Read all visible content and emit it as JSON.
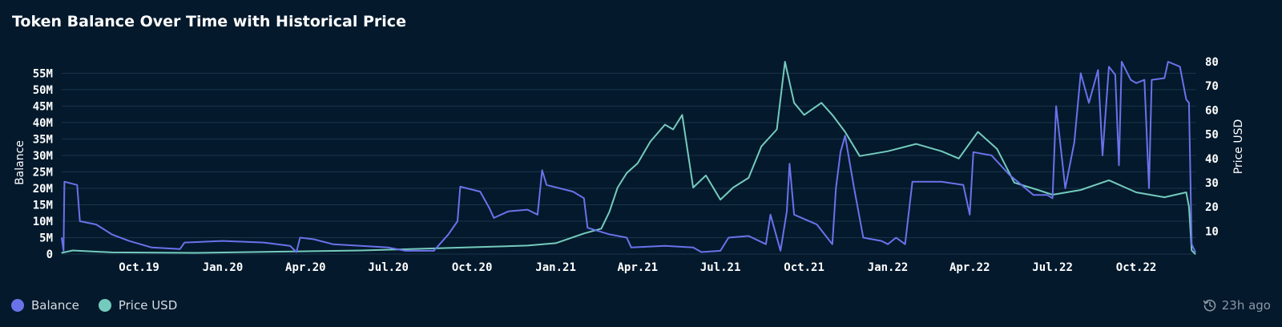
{
  "title": "Token Balance Over Time with Historical Price",
  "legend": {
    "balance_label": "Balance",
    "price_label": "Price USD"
  },
  "updated": "23h ago",
  "colors": {
    "background": "#04192c",
    "balance": "#6a72ea",
    "price": "#74cbbd",
    "grid": "#1b3449",
    "text": "#ffffff"
  },
  "chart_data": {
    "type": "line",
    "x_type": "date",
    "xlim": [
      "2019-07-08",
      "2022-12-06"
    ],
    "x_ticks": [
      "Oct.19",
      "Jan.20",
      "Apr.20",
      "Jul.20",
      "Oct.20",
      "Jan.21",
      "Apr.21",
      "Jul.21",
      "Oct.21",
      "Jan.22",
      "Apr.22",
      "Jul.22",
      "Oct.22"
    ],
    "x_tick_dates": [
      "2019-10-01",
      "2020-01-01",
      "2020-04-01",
      "2020-07-01",
      "2020-10-01",
      "2021-01-01",
      "2021-04-01",
      "2021-07-01",
      "2021-10-01",
      "2022-01-01",
      "2022-04-01",
      "2022-07-01",
      "2022-10-01"
    ],
    "ylabel": "Balance",
    "y_ticks": [
      "0",
      "5M",
      "10M",
      "15M",
      "20M",
      "25M",
      "30M",
      "35M",
      "40M",
      "45M",
      "50M",
      "55M"
    ],
    "ylim": [
      0,
      58500000
    ],
    "y2label": "Price USD",
    "y2_ticks": [
      "10",
      "20",
      "30",
      "40",
      "50",
      "60",
      "70",
      "80"
    ],
    "y2lim": [
      0.5,
      80
    ],
    "grid": true,
    "legend_position": "bottom-left",
    "series": [
      {
        "name": "Balance",
        "axis": "left",
        "points": [
          [
            "2019-07-08",
            5000000
          ],
          [
            "2019-07-10",
            1000000
          ],
          [
            "2019-07-11",
            22000000
          ],
          [
            "2019-07-25",
            21000000
          ],
          [
            "2019-07-28",
            10000000
          ],
          [
            "2019-08-15",
            9000000
          ],
          [
            "2019-09-01",
            6000000
          ],
          [
            "2019-09-20",
            4000000
          ],
          [
            "2019-10-15",
            2000000
          ],
          [
            "2019-11-15",
            1500000
          ],
          [
            "2019-11-20",
            3500000
          ],
          [
            "2020-01-01",
            4000000
          ],
          [
            "2020-02-15",
            3500000
          ],
          [
            "2020-03-15",
            2500000
          ],
          [
            "2020-03-22",
            600000
          ],
          [
            "2020-03-26",
            5000000
          ],
          [
            "2020-04-10",
            4500000
          ],
          [
            "2020-05-01",
            3000000
          ],
          [
            "2020-06-01",
            2500000
          ],
          [
            "2020-07-01",
            2000000
          ],
          [
            "2020-07-20",
            1000000
          ],
          [
            "2020-08-20",
            1000000
          ],
          [
            "2020-09-05",
            6000000
          ],
          [
            "2020-09-15",
            10000000
          ],
          [
            "2020-09-18",
            20500000
          ],
          [
            "2020-10-10",
            19000000
          ],
          [
            "2020-10-20",
            14000000
          ],
          [
            "2020-10-25",
            11000000
          ],
          [
            "2020-11-10",
            13000000
          ],
          [
            "2020-12-01",
            13500000
          ],
          [
            "2020-12-12",
            12000000
          ],
          [
            "2020-12-17",
            25500000
          ],
          [
            "2020-12-22",
            21000000
          ],
          [
            "2021-01-20",
            19000000
          ],
          [
            "2021-02-01",
            17000000
          ],
          [
            "2021-02-05",
            8000000
          ],
          [
            "2021-03-01",
            6000000
          ],
          [
            "2021-03-20",
            5000000
          ],
          [
            "2021-03-25",
            2000000
          ],
          [
            "2021-05-01",
            2500000
          ],
          [
            "2021-06-01",
            2000000
          ],
          [
            "2021-06-10",
            600000
          ],
          [
            "2021-07-01",
            1000000
          ],
          [
            "2021-07-10",
            5000000
          ],
          [
            "2021-08-01",
            5500000
          ],
          [
            "2021-08-20",
            3000000
          ],
          [
            "2021-08-25",
            12000000
          ],
          [
            "2021-09-05",
            1000000
          ],
          [
            "2021-09-12",
            13000000
          ],
          [
            "2021-09-15",
            27500000
          ],
          [
            "2021-09-20",
            12000000
          ],
          [
            "2021-10-15",
            9000000
          ],
          [
            "2021-11-01",
            3000000
          ],
          [
            "2021-11-05",
            20000000
          ],
          [
            "2021-11-10",
            31000000
          ],
          [
            "2021-11-15",
            36000000
          ],
          [
            "2021-11-25",
            20000000
          ],
          [
            "2021-12-05",
            5000000
          ],
          [
            "2021-12-25",
            4000000
          ],
          [
            "2022-01-01",
            3000000
          ],
          [
            "2022-01-10",
            5000000
          ],
          [
            "2022-01-20",
            3000000
          ],
          [
            "2022-01-28",
            22000000
          ],
          [
            "2022-03-01",
            22000000
          ],
          [
            "2022-03-25",
            21000000
          ],
          [
            "2022-04-01",
            12000000
          ],
          [
            "2022-04-05",
            31000000
          ],
          [
            "2022-04-25",
            30000000
          ],
          [
            "2022-05-15",
            24000000
          ],
          [
            "2022-06-10",
            18000000
          ],
          [
            "2022-06-25",
            18000000
          ],
          [
            "2022-07-01",
            17000000
          ],
          [
            "2022-07-05",
            45000000
          ],
          [
            "2022-07-15",
            20000000
          ],
          [
            "2022-07-25",
            34000000
          ],
          [
            "2022-08-01",
            55000000
          ],
          [
            "2022-08-10",
            46000000
          ],
          [
            "2022-08-20",
            56000000
          ],
          [
            "2022-08-25",
            30000000
          ],
          [
            "2022-09-01",
            57000000
          ],
          [
            "2022-09-08",
            54500000
          ],
          [
            "2022-09-12",
            27000000
          ],
          [
            "2022-09-15",
            58500000
          ],
          [
            "2022-09-25",
            53000000
          ],
          [
            "2022-10-01",
            52000000
          ],
          [
            "2022-10-10",
            53000000
          ],
          [
            "2022-10-15",
            20000000
          ],
          [
            "2022-10-18",
            53000000
          ],
          [
            "2022-11-01",
            53500000
          ],
          [
            "2022-11-05",
            58500000
          ],
          [
            "2022-11-18",
            57000000
          ],
          [
            "2022-11-25",
            47000000
          ],
          [
            "2022-11-28",
            46000000
          ],
          [
            "2022-12-01",
            3000000
          ],
          [
            "2022-12-05",
            600000
          ]
        ]
      },
      {
        "name": "Price USD",
        "axis": "right",
        "points": [
          [
            "2019-07-08",
            1
          ],
          [
            "2019-07-20",
            2
          ],
          [
            "2019-09-01",
            1.2
          ],
          [
            "2019-12-01",
            1
          ],
          [
            "2020-03-01",
            1.5
          ],
          [
            "2020-06-01",
            2
          ],
          [
            "2020-09-01",
            3
          ],
          [
            "2020-12-01",
            4
          ],
          [
            "2021-01-01",
            5
          ],
          [
            "2021-02-01",
            9
          ],
          [
            "2021-02-20",
            11
          ],
          [
            "2021-03-01",
            18
          ],
          [
            "2021-03-10",
            28
          ],
          [
            "2021-03-20",
            34
          ],
          [
            "2021-04-01",
            38
          ],
          [
            "2021-04-15",
            47
          ],
          [
            "2021-05-01",
            54
          ],
          [
            "2021-05-10",
            52
          ],
          [
            "2021-05-20",
            58
          ],
          [
            "2021-06-01",
            28
          ],
          [
            "2021-06-15",
            33
          ],
          [
            "2021-07-01",
            23
          ],
          [
            "2021-07-15",
            28
          ],
          [
            "2021-08-01",
            32
          ],
          [
            "2021-08-15",
            45
          ],
          [
            "2021-09-01",
            52
          ],
          [
            "2021-09-10",
            80
          ],
          [
            "2021-09-20",
            63
          ],
          [
            "2021-10-01",
            58
          ],
          [
            "2021-10-20",
            63
          ],
          [
            "2021-11-01",
            58
          ],
          [
            "2021-11-15",
            51
          ],
          [
            "2021-12-01",
            41
          ],
          [
            "2022-01-01",
            43
          ],
          [
            "2022-02-01",
            46
          ],
          [
            "2022-03-01",
            43
          ],
          [
            "2022-03-20",
            40
          ],
          [
            "2022-04-10",
            51
          ],
          [
            "2022-05-01",
            44
          ],
          [
            "2022-05-20",
            30
          ],
          [
            "2022-06-15",
            27
          ],
          [
            "2022-07-01",
            25
          ],
          [
            "2022-08-01",
            27
          ],
          [
            "2022-09-01",
            31
          ],
          [
            "2022-10-01",
            26
          ],
          [
            "2022-11-01",
            24
          ],
          [
            "2022-11-25",
            26
          ],
          [
            "2022-11-28",
            20
          ],
          [
            "2022-12-01",
            2
          ],
          [
            "2022-12-05",
            0.5
          ]
        ]
      }
    ]
  }
}
